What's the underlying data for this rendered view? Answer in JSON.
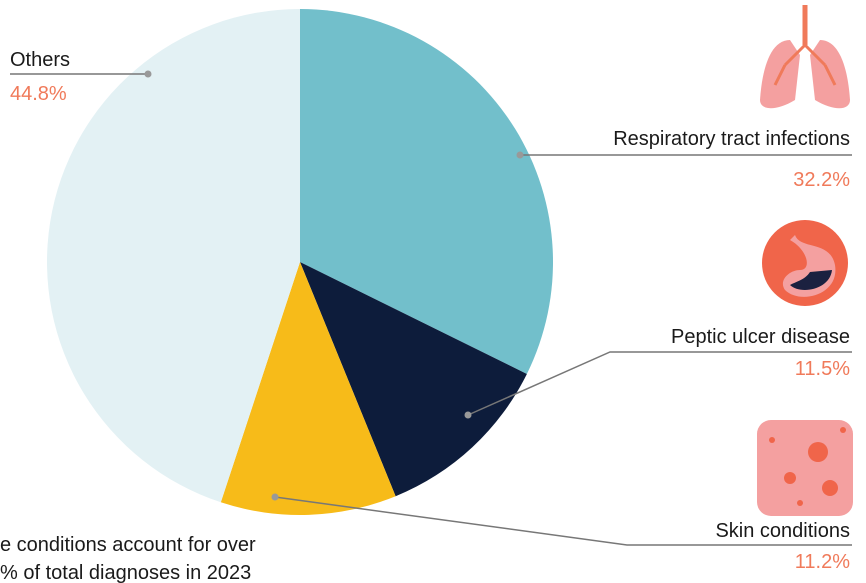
{
  "chart_data": {
    "type": "pie",
    "categories": [
      "Respiratory tract infections",
      "Peptic ulcer disease",
      "Skin conditions",
      "Others"
    ],
    "values": [
      32.2,
      11.5,
      11.2,
      44.8
    ],
    "value_labels": [
      "32.2%",
      "11.5%",
      "11.2%",
      "44.8%"
    ],
    "colors": [
      "#72bfcb",
      "#0d1c3b",
      "#f7bb19",
      "#e3f1f4"
    ],
    "annotation": [
      "e conditions account for over",
      "% of total diagnoses in 2023"
    ]
  }
}
